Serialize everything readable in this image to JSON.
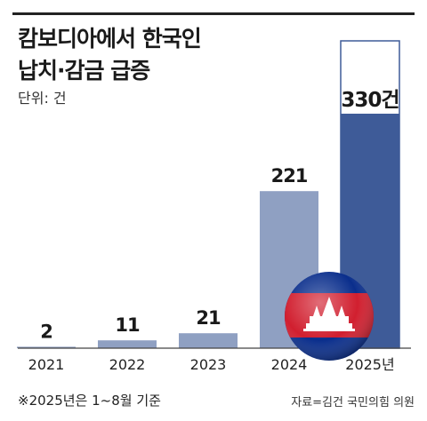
{
  "header": {
    "title_line1": "캄보디아에서 한국인",
    "title_line2": "납치·감금 급증",
    "unit": "단위: 건"
  },
  "chart_data": {
    "type": "bar",
    "categories": [
      "2021",
      "2022",
      "2023",
      "2024",
      "2025년"
    ],
    "values": [
      2,
      11,
      21,
      221,
      330
    ],
    "value_labels": [
      "2",
      "11",
      "21",
      "221",
      "330건"
    ],
    "title": "캄보디아에서 한국인 납치·감금 급증",
    "unit": "건",
    "bar_color": "#8fa0c2",
    "highlight_color": "#3e5b98",
    "highlight_index": 4
  },
  "footer": {
    "footnote": "※2025년은 1~8월 기준",
    "source": "자료=김건 국민의힘 의원"
  },
  "decoration": {
    "icon": "cambodia-flag-ball-icon",
    "flag_colors": {
      "blue": "#0a2e8c",
      "red": "#d11f2f",
      "white": "#ffffff"
    }
  }
}
